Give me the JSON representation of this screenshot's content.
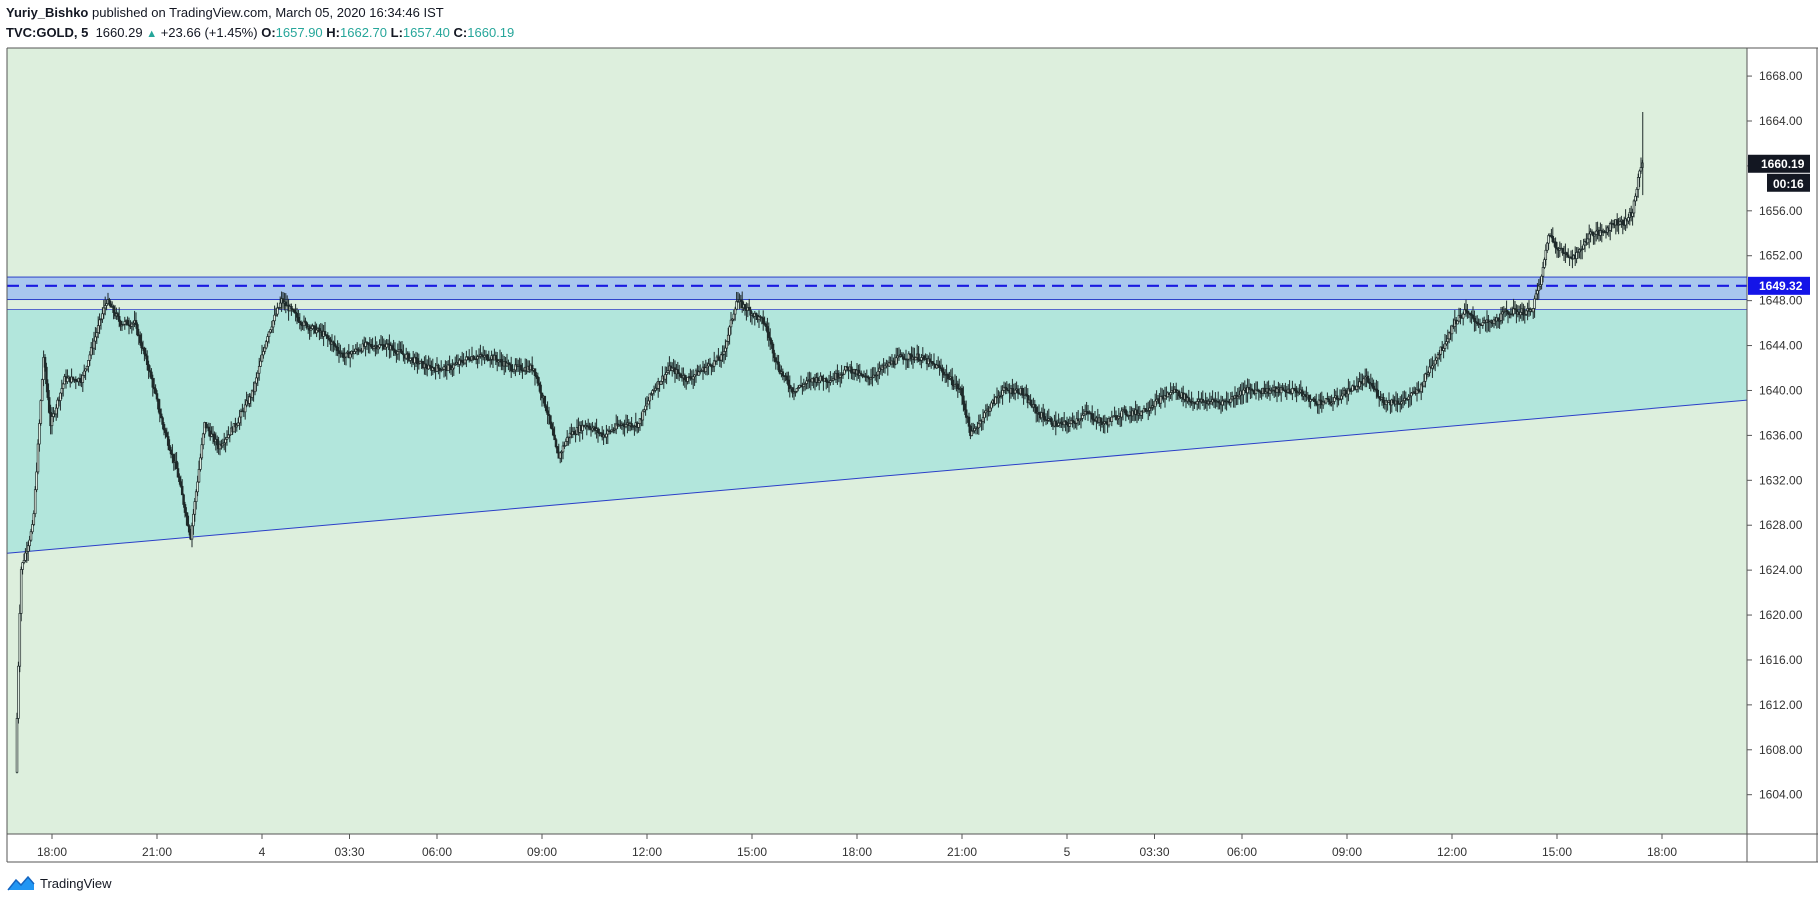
{
  "header": {
    "author": "Yuriy_Bishko",
    "published_text": "published on TradingView.com, March 05, 2020 16:34:46 IST",
    "symbol": "TVC:GOLD, 5",
    "last": "1660.29",
    "change": "+23.66 (+1.45%)",
    "o_label": "O:",
    "o_value": "1657.90",
    "h_label": "H:",
    "h_value": "1662.70",
    "l_label": "L:",
    "l_value": "1657.40",
    "c_label": "C:",
    "c_value": "1660.19"
  },
  "footer": {
    "brand": "TradingView"
  },
  "colors": {
    "background": "#ddefdd",
    "triangle_fill": "#b2e6dc",
    "resistance": "#1a1ae0",
    "zone_fill": "#a8c6ee",
    "candle": "#1e2a2a",
    "last_price_bg": "#131722",
    "level_label_bg": "#1414e8"
  },
  "chart_data": {
    "type": "candlestick",
    "title": "TVC:GOLD, 5",
    "ylim": [
      1600.5,
      1670.5
    ],
    "y_ticks": [
      1604,
      1608,
      1612,
      1616,
      1620,
      1624,
      1628,
      1632,
      1636,
      1640,
      1644,
      1648,
      1652,
      1656,
      1660,
      1664,
      1668
    ],
    "y_tick_labels": [
      "1604.00",
      "1608.00",
      "1612.00",
      "1616.00",
      "1620.00",
      "1624.00",
      "1628.00",
      "1632.00",
      "1636.00",
      "1640.00",
      "1644.00",
      "1648.00",
      "1652.00",
      "1656.00",
      "1660.00",
      "1664.00",
      "1668.00"
    ],
    "x_time_range": [
      0,
      58
    ],
    "x_ticks": [
      {
        "t": 1,
        "label": "18:00"
      },
      {
        "t": 4,
        "label": "21:00"
      },
      {
        "t": 7,
        "label": "4"
      },
      {
        "t": 9.5,
        "label": "03:30"
      },
      {
        "t": 12,
        "label": "06:00"
      },
      {
        "t": 15,
        "label": "09:00"
      },
      {
        "t": 18,
        "label": "12:00"
      },
      {
        "t": 21,
        "label": "15:00"
      },
      {
        "t": 24,
        "label": "18:00"
      },
      {
        "t": 27,
        "label": "21:00"
      },
      {
        "t": 30,
        "label": "5"
      },
      {
        "t": 32.5,
        "label": "03:30"
      },
      {
        "t": 35,
        "label": "06:00"
      },
      {
        "t": 38,
        "label": "09:00"
      },
      {
        "t": 41,
        "label": "12:00"
      },
      {
        "t": 44,
        "label": "15:00"
      },
      {
        "t": 47,
        "label": "18:00"
      }
    ],
    "price_path": [
      [
        0.0,
        1606
      ],
      [
        0.15,
        1624
      ],
      [
        0.5,
        1628
      ],
      [
        0.8,
        1643
      ],
      [
        1.0,
        1637
      ],
      [
        1.4,
        1641
      ],
      [
        1.9,
        1641
      ],
      [
        2.3,
        1645
      ],
      [
        2.6,
        1648
      ],
      [
        3.0,
        1646
      ],
      [
        3.4,
        1646
      ],
      [
        3.8,
        1642
      ],
      [
        4.2,
        1637
      ],
      [
        4.6,
        1633
      ],
      [
        5.0,
        1627
      ],
      [
        5.4,
        1637
      ],
      [
        5.8,
        1635
      ],
      [
        6.3,
        1637
      ],
      [
        6.8,
        1640
      ],
      [
        7.2,
        1645
      ],
      [
        7.6,
        1648
      ],
      [
        8.2,
        1646
      ],
      [
        8.8,
        1645
      ],
      [
        9.4,
        1643
      ],
      [
        10.0,
        1644
      ],
      [
        10.6,
        1644
      ],
      [
        11.2,
        1643
      ],
      [
        11.8,
        1642
      ],
      [
        12.4,
        1642
      ],
      [
        13.0,
        1643
      ],
      [
        13.6,
        1643
      ],
      [
        14.2,
        1642
      ],
      [
        14.8,
        1642
      ],
      [
        15.2,
        1638
      ],
      [
        15.5,
        1634
      ],
      [
        15.8,
        1636
      ],
      [
        16.3,
        1637
      ],
      [
        16.8,
        1636
      ],
      [
        17.3,
        1637
      ],
      [
        17.8,
        1637
      ],
      [
        18.2,
        1640
      ],
      [
        18.7,
        1642
      ],
      [
        19.2,
        1641
      ],
      [
        19.7,
        1642
      ],
      [
        20.2,
        1643
      ],
      [
        20.6,
        1648
      ],
      [
        21.0,
        1647
      ],
      [
        21.4,
        1646
      ],
      [
        21.8,
        1642
      ],
      [
        22.2,
        1640
      ],
      [
        22.8,
        1641
      ],
      [
        23.3,
        1641
      ],
      [
        23.8,
        1642
      ],
      [
        24.3,
        1641
      ],
      [
        24.8,
        1642
      ],
      [
        25.3,
        1643
      ],
      [
        25.8,
        1643
      ],
      [
        26.4,
        1642
      ],
      [
        27.0,
        1640
      ],
      [
        27.3,
        1636
      ],
      [
        27.7,
        1638
      ],
      [
        28.2,
        1640
      ],
      [
        28.7,
        1640
      ],
      [
        29.2,
        1638
      ],
      [
        29.7,
        1637
      ],
      [
        30.1,
        1637
      ],
      [
        30.6,
        1638
      ],
      [
        31.1,
        1637
      ],
      [
        31.6,
        1638
      ],
      [
        32.1,
        1638
      ],
      [
        32.6,
        1639
      ],
      [
        33.1,
        1640
      ],
      [
        33.6,
        1639
      ],
      [
        34.1,
        1639
      ],
      [
        34.6,
        1639
      ],
      [
        35.1,
        1640
      ],
      [
        35.6,
        1640
      ],
      [
        36.1,
        1640
      ],
      [
        36.6,
        1640
      ],
      [
        37.1,
        1639
      ],
      [
        37.6,
        1639
      ],
      [
        38.1,
        1640
      ],
      [
        38.6,
        1641
      ],
      [
        39.1,
        1639
      ],
      [
        39.6,
        1639
      ],
      [
        40.1,
        1640
      ],
      [
        40.4,
        1642
      ],
      [
        40.8,
        1644
      ],
      [
        41.1,
        1646
      ],
      [
        41.4,
        1647
      ],
      [
        41.8,
        1646
      ],
      [
        42.2,
        1646
      ],
      [
        42.6,
        1647
      ],
      [
        43.0,
        1647
      ],
      [
        43.3,
        1647
      ],
      [
        43.6,
        1650
      ],
      [
        43.8,
        1654
      ],
      [
        44.0,
        1653
      ],
      [
        44.3,
        1652
      ],
      [
        44.6,
        1652
      ],
      [
        45.0,
        1654
      ],
      [
        45.3,
        1654
      ],
      [
        45.7,
        1655
      ],
      [
        46.0,
        1655
      ],
      [
        46.2,
        1656
      ],
      [
        46.45,
        1660.19
      ]
    ],
    "resistance_level": {
      "value": 1649.32,
      "label": "1649.32",
      "zone": [
        1648.1,
        1650.1
      ],
      "style": "dashed"
    },
    "triangle": {
      "top": 1647.2,
      "bottom_start": [
        0,
        1625.5
      ],
      "bottom_end": [
        50,
        1639.3
      ]
    },
    "last_price": {
      "value": 1660.19,
      "label": "1660.19",
      "countdown": "00:16"
    }
  }
}
